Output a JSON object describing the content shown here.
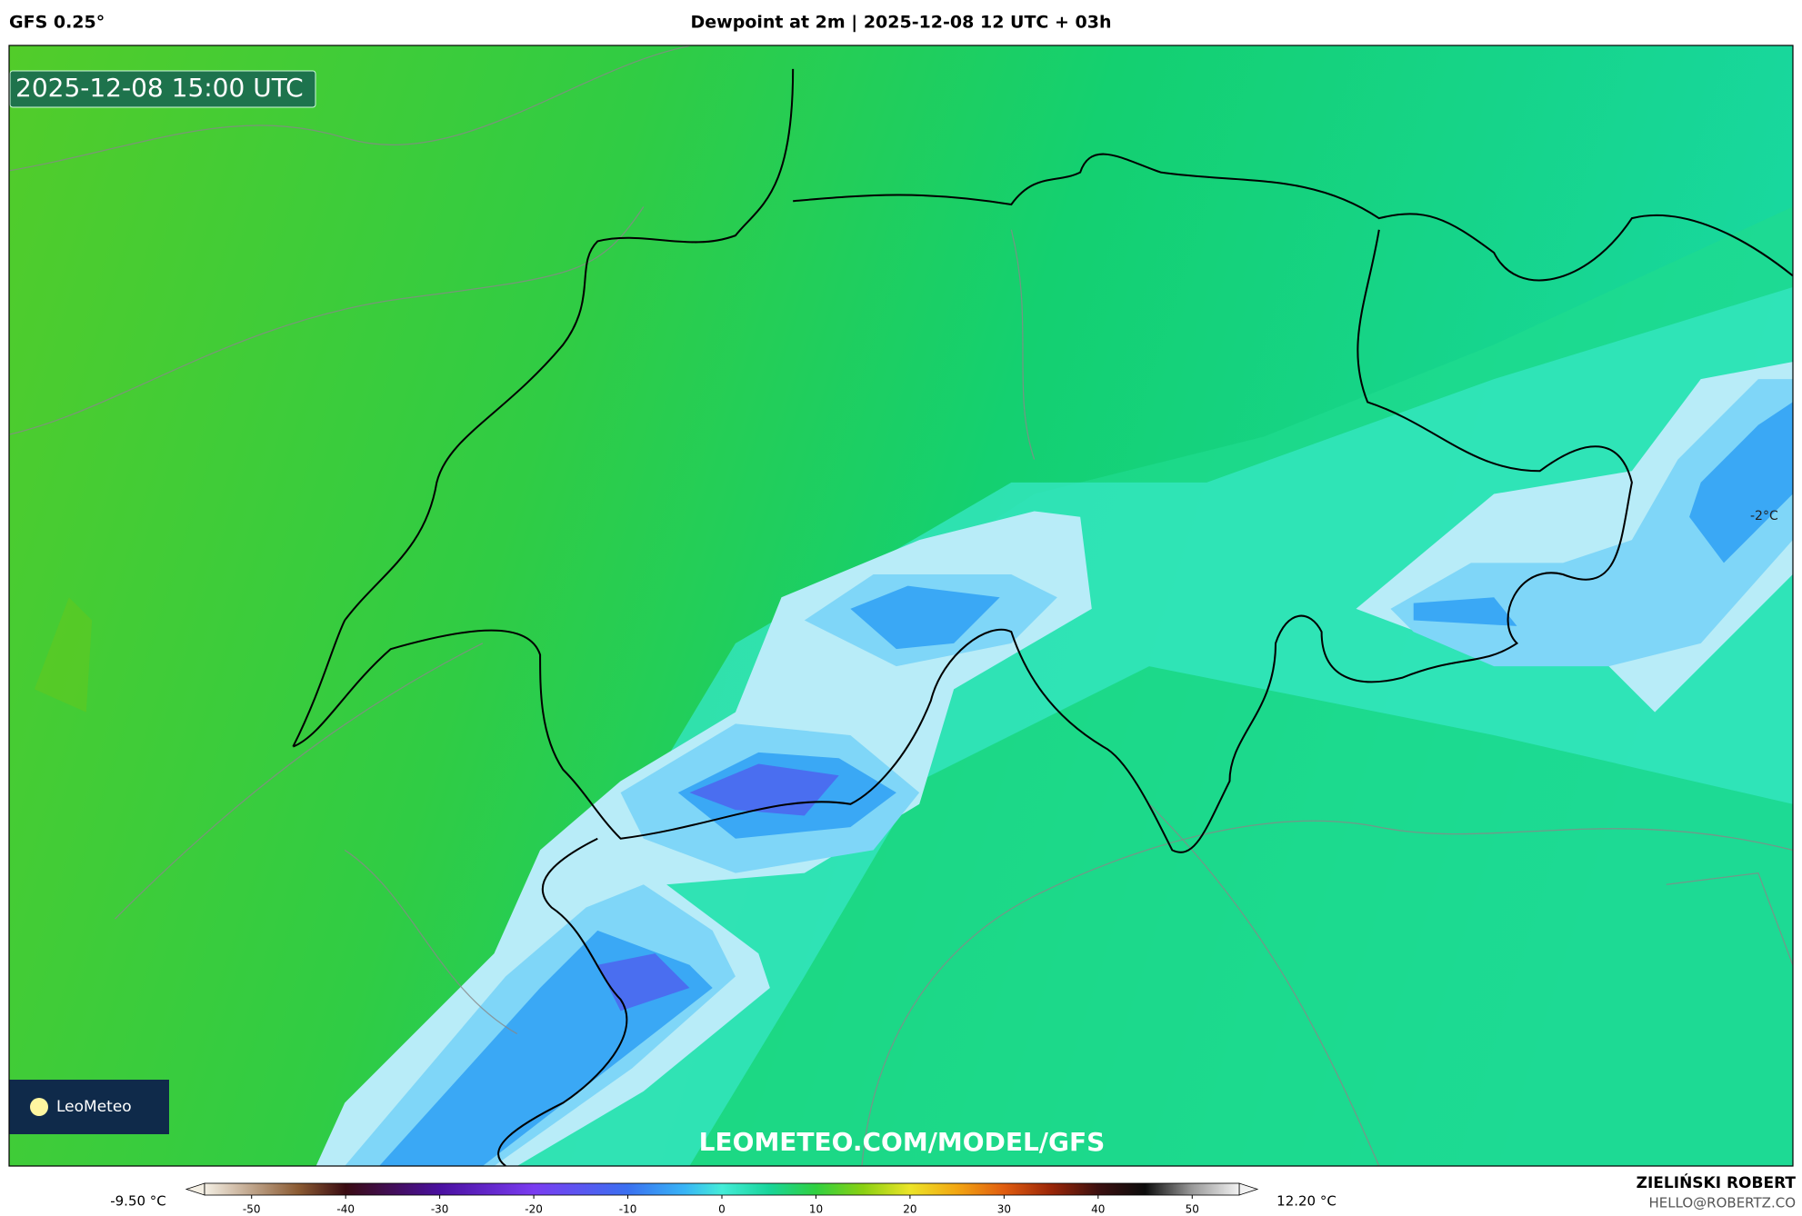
{
  "header": {
    "left": "GFS 0.25°",
    "title": "Dewpoint at 2m | 2025-12-08 12 UTC + 03h"
  },
  "map": {
    "timestamp": "2025-12-08 15:00 UTC",
    "watermark": "LEOMETEO.COM/MODEL/GFS",
    "logo": "LeoMeteo",
    "contour_label": "-2°C"
  },
  "colorbar": {
    "min_label": "-9.50 °C",
    "max_label": "12.20 °C",
    "range": [
      -55,
      55
    ],
    "ticks": [
      -50,
      -40,
      -30,
      -20,
      -10,
      0,
      10,
      20,
      30,
      40,
      50
    ],
    "stops": [
      {
        "value": -55,
        "color": "#f4efe4"
      },
      {
        "value": -45,
        "color": "#8a5a32"
      },
      {
        "value": -40,
        "color": "#3a0c12"
      },
      {
        "value": -30,
        "color": "#4a10a0"
      },
      {
        "value": -20,
        "color": "#7a3cf0"
      },
      {
        "value": -10,
        "color": "#3a70f0"
      },
      {
        "value": -4,
        "color": "#38b4f6"
      },
      {
        "value": 0,
        "color": "#44ecd8"
      },
      {
        "value": 5,
        "color": "#18d59a"
      },
      {
        "value": 10,
        "color": "#30d040"
      },
      {
        "value": 15,
        "color": "#8ad012"
      },
      {
        "value": 20,
        "color": "#ece428"
      },
      {
        "value": 25,
        "color": "#f2a612"
      },
      {
        "value": 30,
        "color": "#e05c10"
      },
      {
        "value": 35,
        "color": "#9a2608"
      },
      {
        "value": 40,
        "color": "#3c1010"
      },
      {
        "value": 45,
        "color": "#0c0c0c"
      },
      {
        "value": 50,
        "color": "#9a9a9a"
      },
      {
        "value": 55,
        "color": "#f2f2f2"
      }
    ]
  },
  "credit": {
    "name": "ZIELIŃSKI ROBERT",
    "email": "HELLO@ROBERTZ.CO"
  }
}
